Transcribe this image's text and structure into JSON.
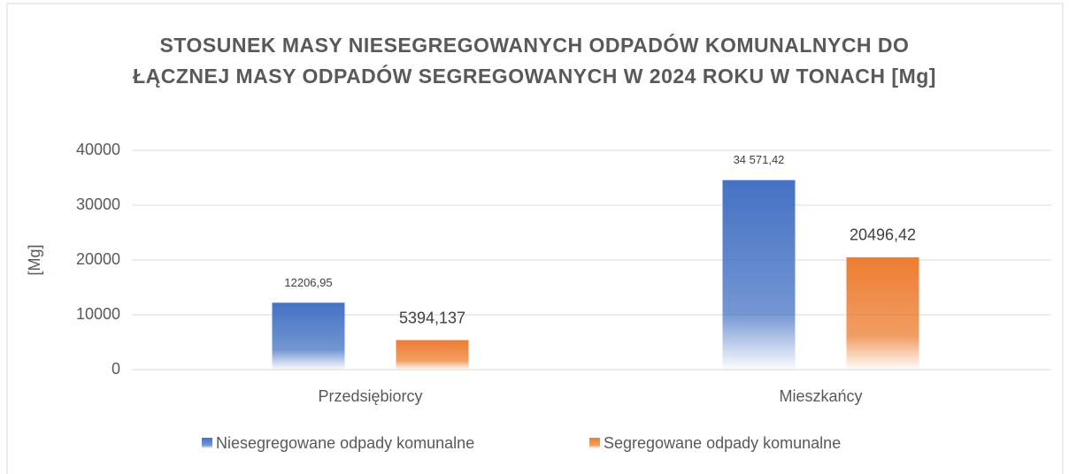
{
  "chart_data": {
    "type": "bar",
    "title": "STOSUNEK MASY NIESEGREGOWANYCH ODPADÓW KOMUNALNYCH DO ŁĄCZNEJ MASY ODPADÓW SEGREGOWANYCH W 2024 ROKU W TONACH [Mg]",
    "y_label": "[Mg]",
    "categories": [
      "Przedsiębiorcy",
      "Mieszkańcy"
    ],
    "series": [
      {
        "name": "Niesegregowane odpady komunalne",
        "color": "#4472c4",
        "values": [
          12206.95,
          34571.42
        ],
        "value_labels": [
          "12206,95",
          "34 571,42"
        ]
      },
      {
        "name": "Segregowane odpady komunalne",
        "color": "#ed7d31",
        "values": [
          5394.137,
          20496.42
        ],
        "value_labels": [
          "5394,137",
          "20496,42"
        ]
      }
    ],
    "ylim": [
      0,
      40000
    ],
    "yticks": [
      0,
      10000,
      20000,
      30000,
      40000
    ],
    "grid": true,
    "legend": "bottom"
  }
}
